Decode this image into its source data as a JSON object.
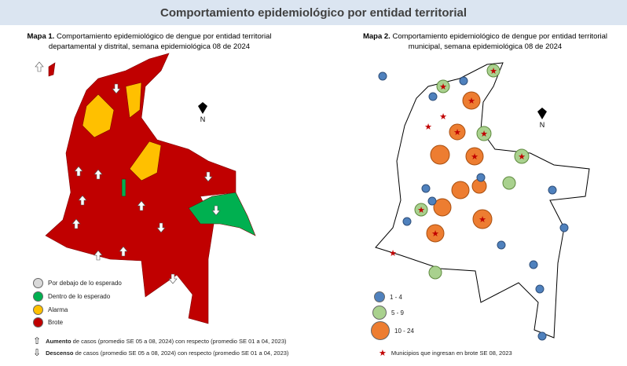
{
  "header": {
    "title": "Comportamiento epidemiológico por entidad territorial"
  },
  "map1": {
    "caption_label": "Mapa 1.",
    "caption": "Comportamiento epidemiológico de dengue por entidad territorial departamental y distrital, semana epidemiológica 08 de 2024",
    "north": "N",
    "legend": [
      "Por debajo de lo esperado",
      "Dentro de lo esperado",
      "Alarma",
      "Brote"
    ],
    "arrows": [
      {
        "bold": "Aumento",
        "text": "de casos (promedio SE 05 a 08, 2024) con respecto (promedio SE 01 a 04, 2023)"
      },
      {
        "bold": "Descenso",
        "text": "de casos (promedio SE 05 a 08, 2024) con respecto (promedio SE 01 a 04, 2023)"
      }
    ]
  },
  "map2": {
    "caption_label": "Mapa 2.",
    "caption": "Comportamiento epidemiológico de dengue por entidad territorial municipal, semana epidemiológica 08 de 2024",
    "north": "N",
    "legend": [
      "1 - 4",
      "5 - 9",
      "10 - 24"
    ],
    "star_legend": "Municipios que ingresan en brote SE 08, 2023"
  }
}
